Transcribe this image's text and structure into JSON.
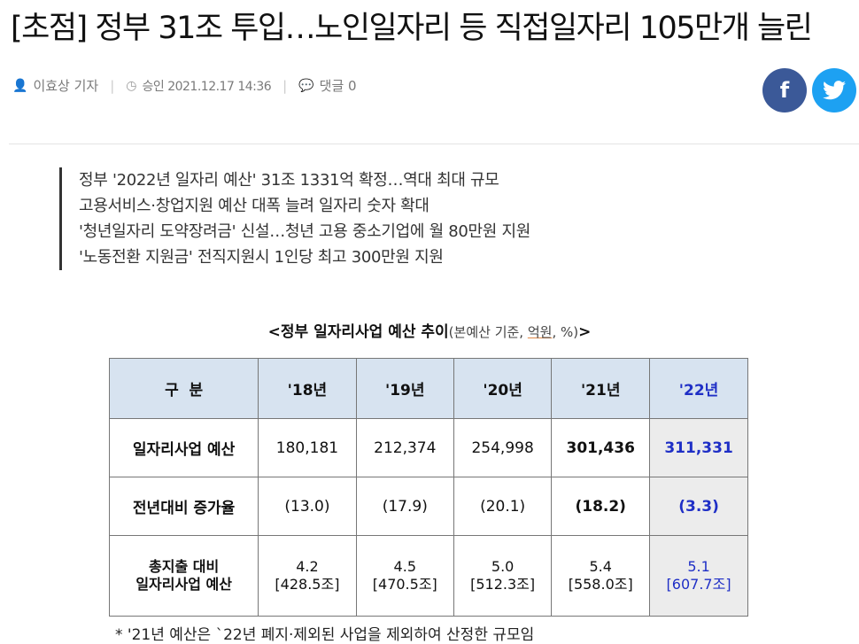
{
  "article": {
    "headline": "[초점] 정부 31조 투입…노인일자리 등 직접일자리 105만개 늘린",
    "byline": "이효상 기자",
    "approved": "승인 2021.12.17 14:36",
    "comments": "댓글 0"
  },
  "share": {
    "facebook_glyph": "f",
    "twitter_glyph": "🐦"
  },
  "summary": [
    "정부 '2022년 일자리 예산' 31조 1331억 확정…역대 최대 규모",
    "고용서비스·창업지원 예산 대폭 늘려 일자리 숫자 확대",
    "'청년일자리 도약장려금' 신설…청년 고용 중소기업에 월 80만원 지원",
    "'노동전환 지원금' 전직지원시 1인당 최고 300만원 지원"
  ],
  "table": {
    "caption_open": "<",
    "caption_title": "정부 일자리사업 예산 추이",
    "caption_sub_a": "(본예산 기준, ",
    "caption_sub_unit": "억원",
    "caption_sub_b": ", %)",
    "caption_close": ">",
    "corner": "구  분",
    "years": [
      "'18년",
      "'19년",
      "'20년",
      "'21년",
      "'22년"
    ],
    "rows": [
      {
        "label": "일자리사업 예산",
        "values": [
          "180,181",
          "212,374",
          "254,998",
          "301,436",
          "311,331"
        ]
      },
      {
        "label": "전년대비 증가율",
        "values": [
          "(13.0)",
          "(17.9)",
          "(20.1)",
          "(18.2)",
          "(3.3)"
        ]
      },
      {
        "label_1": "총지출 대비",
        "label_2": "일자리사업 예산",
        "values": [
          {
            "pct": "4.2",
            "total": "[428.5조]"
          },
          {
            "pct": "4.5",
            "total": "[470.5조]"
          },
          {
            "pct": "5.0",
            "total": "[512.3조]"
          },
          {
            "pct": "5.4",
            "total": "[558.0조]"
          },
          {
            "pct": "5.1",
            "total": "[607.7조]"
          }
        ]
      }
    ],
    "footnote": "* '21년 예산은 `22년 폐지·제외된 사업을 제외하여 산정한 규모임"
  },
  "colors": {
    "header_bg": "#d7e3f0",
    "accent_blue": "#1f2fc6",
    "facebook": "#3b5998",
    "twitter": "#1da1f2"
  }
}
